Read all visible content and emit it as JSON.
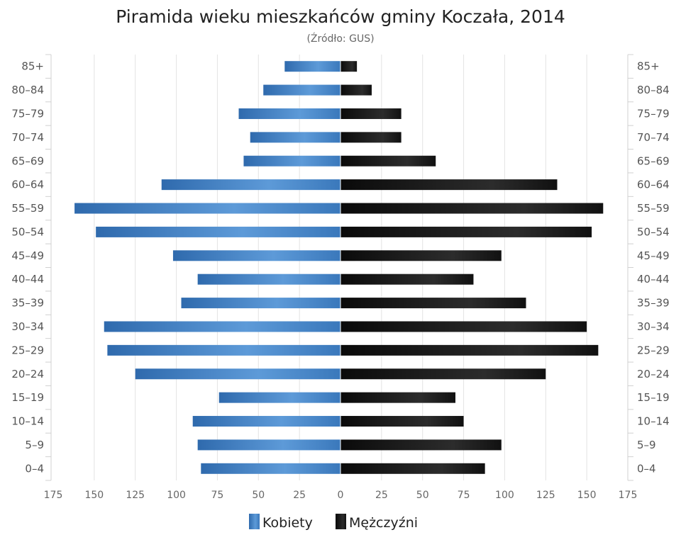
{
  "chart_data": {
    "type": "bar",
    "orientation": "horizontal-pyramid",
    "title": "Piramida wieku mieszkańców gminy Koczała, 2014",
    "subtitle": "(Źródło: GUS)",
    "categories": [
      "85+",
      "80-84",
      "75-79",
      "70-74",
      "65-69",
      "60-64",
      "55-59",
      "50-54",
      "45-49",
      "40-44",
      "35-39",
      "30-34",
      "25-29",
      "20-24",
      "15-19",
      "10-14",
      "5-9",
      "0-4"
    ],
    "xlim": [
      -175,
      175
    ],
    "xticks": [
      175,
      150,
      125,
      100,
      75,
      50,
      25,
      0,
      25,
      50,
      75,
      100,
      125,
      150,
      175
    ],
    "grid": true,
    "legend_position": "bottom",
    "series": [
      {
        "name": "Kobiety",
        "side": "left",
        "color": "#3d7cc0",
        "values": [
          34,
          47,
          62,
          55,
          59,
          109,
          162,
          149,
          102,
          87,
          97,
          144,
          142,
          125,
          74,
          90,
          87,
          85
        ]
      },
      {
        "name": "Mężczyźni",
        "side": "right",
        "color": "#1a1a1a",
        "values": [
          10,
          19,
          37,
          37,
          58,
          132,
          160,
          153,
          98,
          81,
          113,
          150,
          157,
          125,
          70,
          75,
          98,
          88
        ]
      }
    ]
  }
}
